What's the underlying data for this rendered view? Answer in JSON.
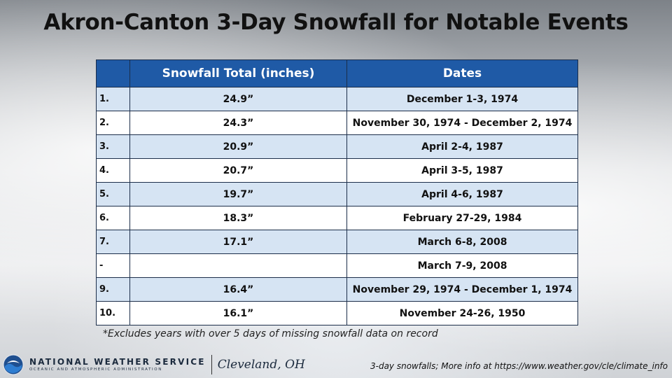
{
  "title": "Akron-Canton 3-Day Snowfall for Notable Events",
  "table": {
    "headers": [
      "",
      "Snowfall Total (inches)",
      "Dates"
    ],
    "rows": [
      {
        "rank": "1.",
        "total": "24.9”",
        "dates": "December 1-3, 1974"
      },
      {
        "rank": "2.",
        "total": "24.3”",
        "dates": "November 30, 1974 - December 2, 1974"
      },
      {
        "rank": "3.",
        "total": "20.9”",
        "dates": "April 2-4, 1987"
      },
      {
        "rank": "4.",
        "total": "20.7”",
        "dates": "April 3-5, 1987"
      },
      {
        "rank": "5.",
        "total": "19.7”",
        "dates": "April 4-6, 1987"
      },
      {
        "rank": "6.",
        "total": "18.3”",
        "dates": "February 27-29, 1984"
      },
      {
        "rank": "7.",
        "total": "17.1”",
        "dates": "March 6-8, 2008"
      },
      {
        "rank": "-",
        "total": "",
        "dates": "March 7-9, 2008"
      },
      {
        "rank": "9.",
        "total": "16.4”",
        "dates": "November 29, 1974 - December 1, 1974"
      },
      {
        "rank": "10.",
        "total": "16.1”",
        "dates": "November 24-26, 1950"
      }
    ]
  },
  "footnote": "*Excludes years with over 5 days of missing snowfall data on record",
  "footer": {
    "agency": "NATIONAL WEATHER SERVICE",
    "agency_sub": "OCEANIC AND ATMOSPHERIC ADMINISTRATION",
    "office": "Cleveland, OH",
    "more_info": "3-day snowfalls; More info at https://www.weather.gov/cle/climate_info",
    "logo_icon": "noaa-logo-icon"
  },
  "colors": {
    "header_bg": "#1f5aa6",
    "row_alt_bg": "#d6e4f3",
    "row_bg": "#ffffff"
  }
}
